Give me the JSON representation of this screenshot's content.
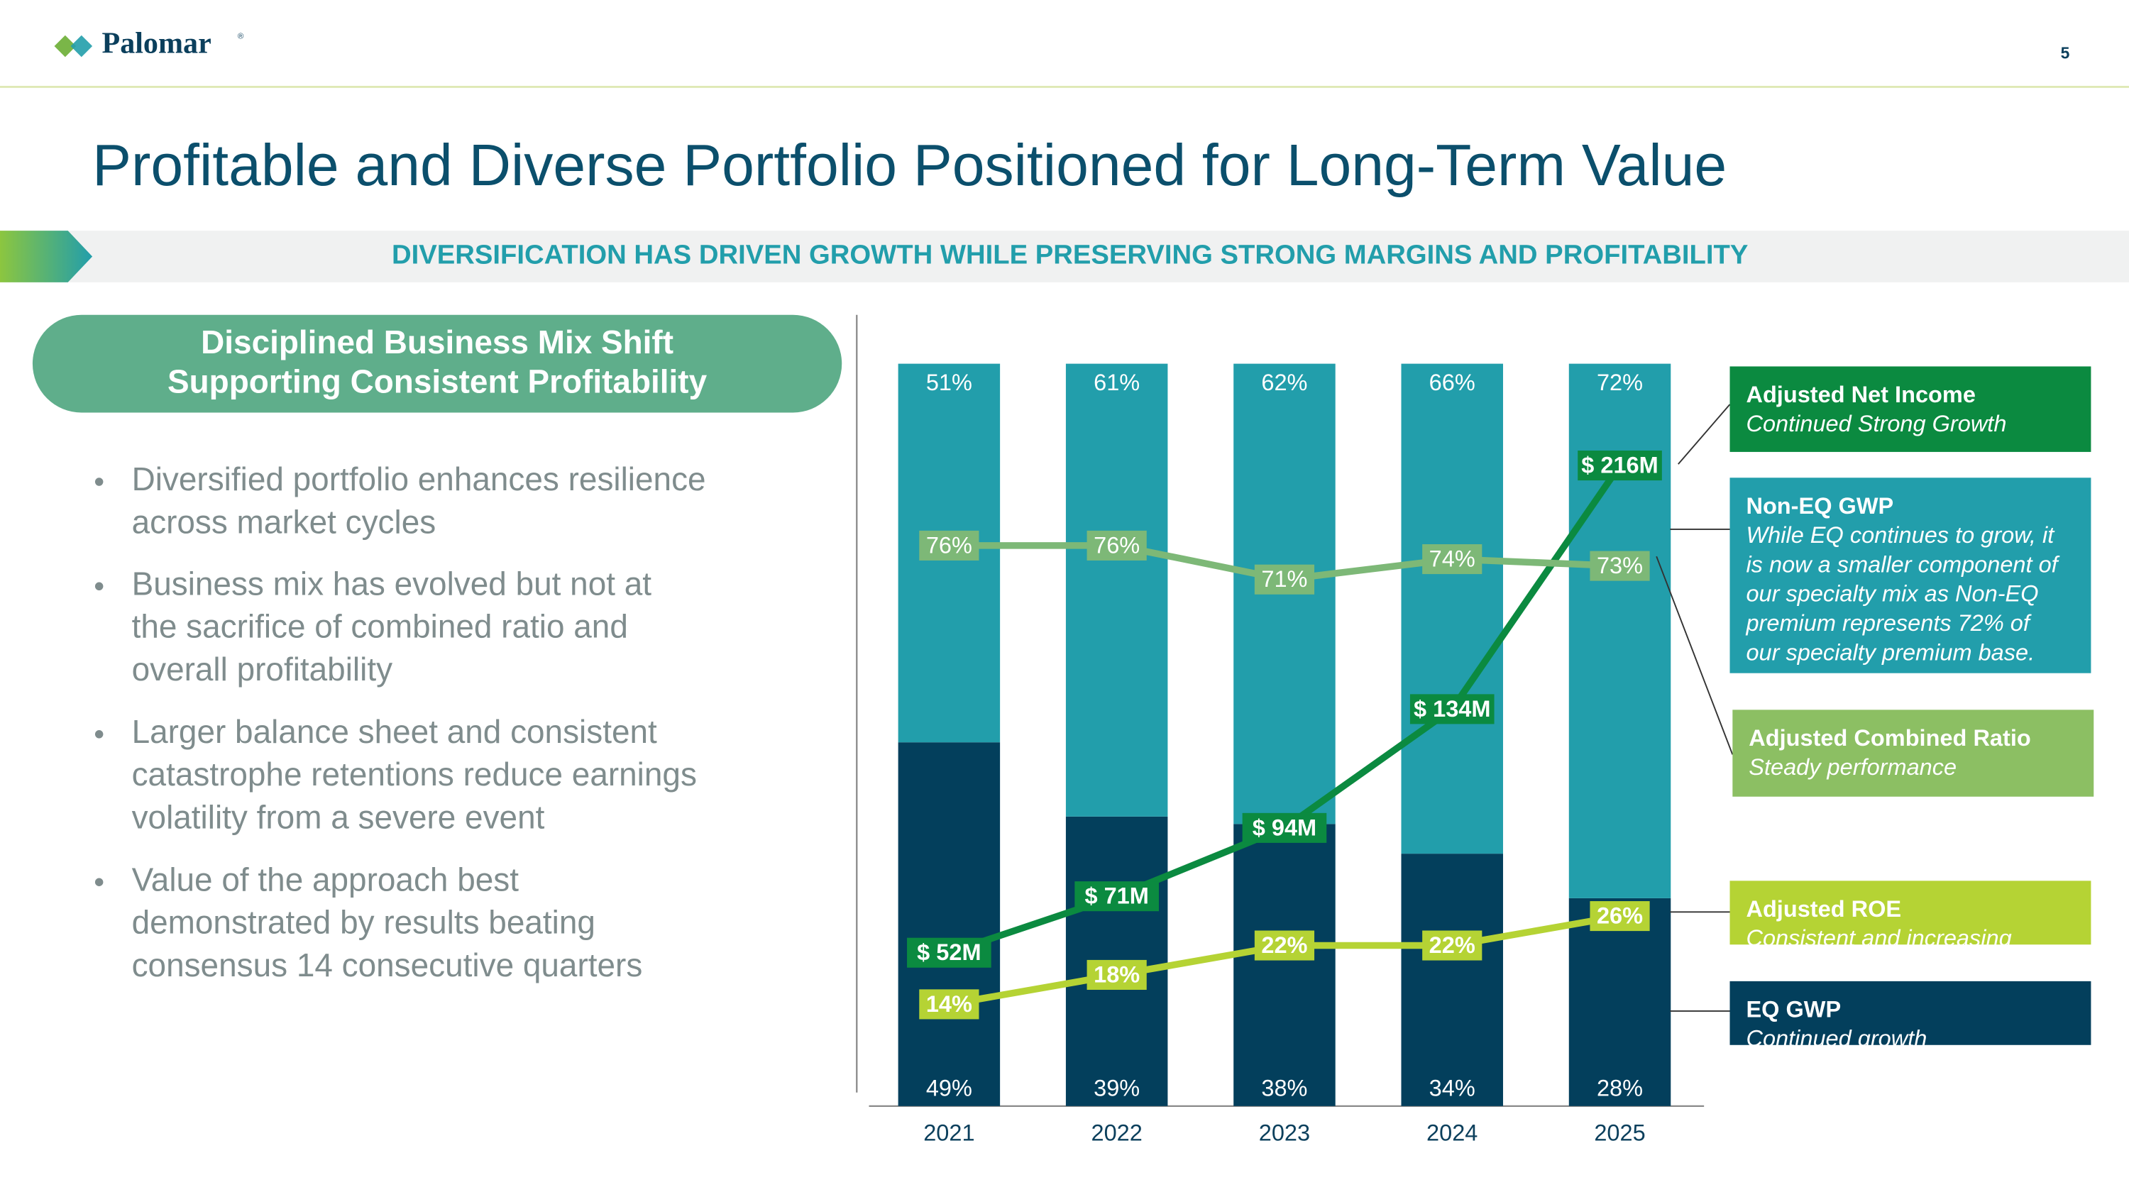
{
  "header": {
    "logo": "Palomar",
    "logo_mark": "®",
    "page": "5"
  },
  "title": "Profitable and Diverse Portfolio Positioned for Long-Term Value",
  "banner": "DIVERSIFICATION HAS DRIVEN GROWTH WHILE PRESERVING STRONG MARGINS AND PROFITABILITY",
  "panel": {
    "heading": [
      "Disciplined Business Mix Shift",
      "Supporting Consistent Profitability"
    ],
    "bullets": [
      [
        "Diversified portfolio enhances resilience",
        "across market cycles"
      ],
      [
        "Business mix has evolved but not at",
        "the sacrifice of combined ratio and",
        "overall profitability"
      ],
      [
        "Larger balance sheet and consistent",
        "catastrophe retentions reduce earnings",
        "volatility from a severe event"
      ],
      [
        "Value of the approach best",
        "demonstrated by results beating",
        "consensus 14 consecutive quarters"
      ]
    ]
  },
  "chart_data": {
    "type": "bar",
    "stacked": true,
    "categories": [
      "2021",
      "2022",
      "2023",
      "2024",
      "2025"
    ],
    "ylim": [
      0,
      100
    ],
    "series": [
      {
        "name": "Adjusted Net Income",
        "type": "line",
        "color": "#0b8a40",
        "values": [
          52,
          71,
          94,
          134,
          216
        ],
        "value_labels": [
          "$ 52M",
          "$ 71M",
          "$ 94M",
          "$ 134M",
          "$ 216M"
        ],
        "description": [
          "Continued Strong Growth"
        ]
      },
      {
        "name": "Non-EQ GWP",
        "type": "bar",
        "color": "#229eab",
        "values": [
          51,
          61,
          62,
          66,
          72
        ],
        "value_labels": [
          "51%",
          "61%",
          "62%",
          "66%",
          "72%"
        ],
        "description": [
          "While EQ continues to grow, it",
          "is now a smaller component of",
          "our specialty mix as Non-EQ",
          "premium represents 72% of",
          "our specialty premium base."
        ]
      },
      {
        "name": "Adjusted Combined Ratio",
        "type": "line",
        "color": "#7db877",
        "values": [
          76,
          76,
          71,
          74,
          73
        ],
        "value_labels": [
          "76%",
          "76%",
          "71%",
          "74%",
          "73%"
        ],
        "description": [
          "Steady performance"
        ]
      },
      {
        "name": "Adjusted ROE",
        "type": "line",
        "color": "#b5d334",
        "values": [
          14,
          18,
          22,
          22,
          26
        ],
        "value_labels": [
          "14%",
          "18%",
          "22%",
          "22%",
          "26%"
        ],
        "description": [
          "Consistent and increasing"
        ]
      },
      {
        "name": "EQ GWP",
        "type": "bar",
        "color": "#033f5c",
        "values": [
          49,
          39,
          38,
          34,
          28
        ],
        "value_labels": [
          "49%",
          "39%",
          "38%",
          "34%",
          "28%"
        ],
        "description": [
          "Continued growth"
        ]
      }
    ]
  }
}
